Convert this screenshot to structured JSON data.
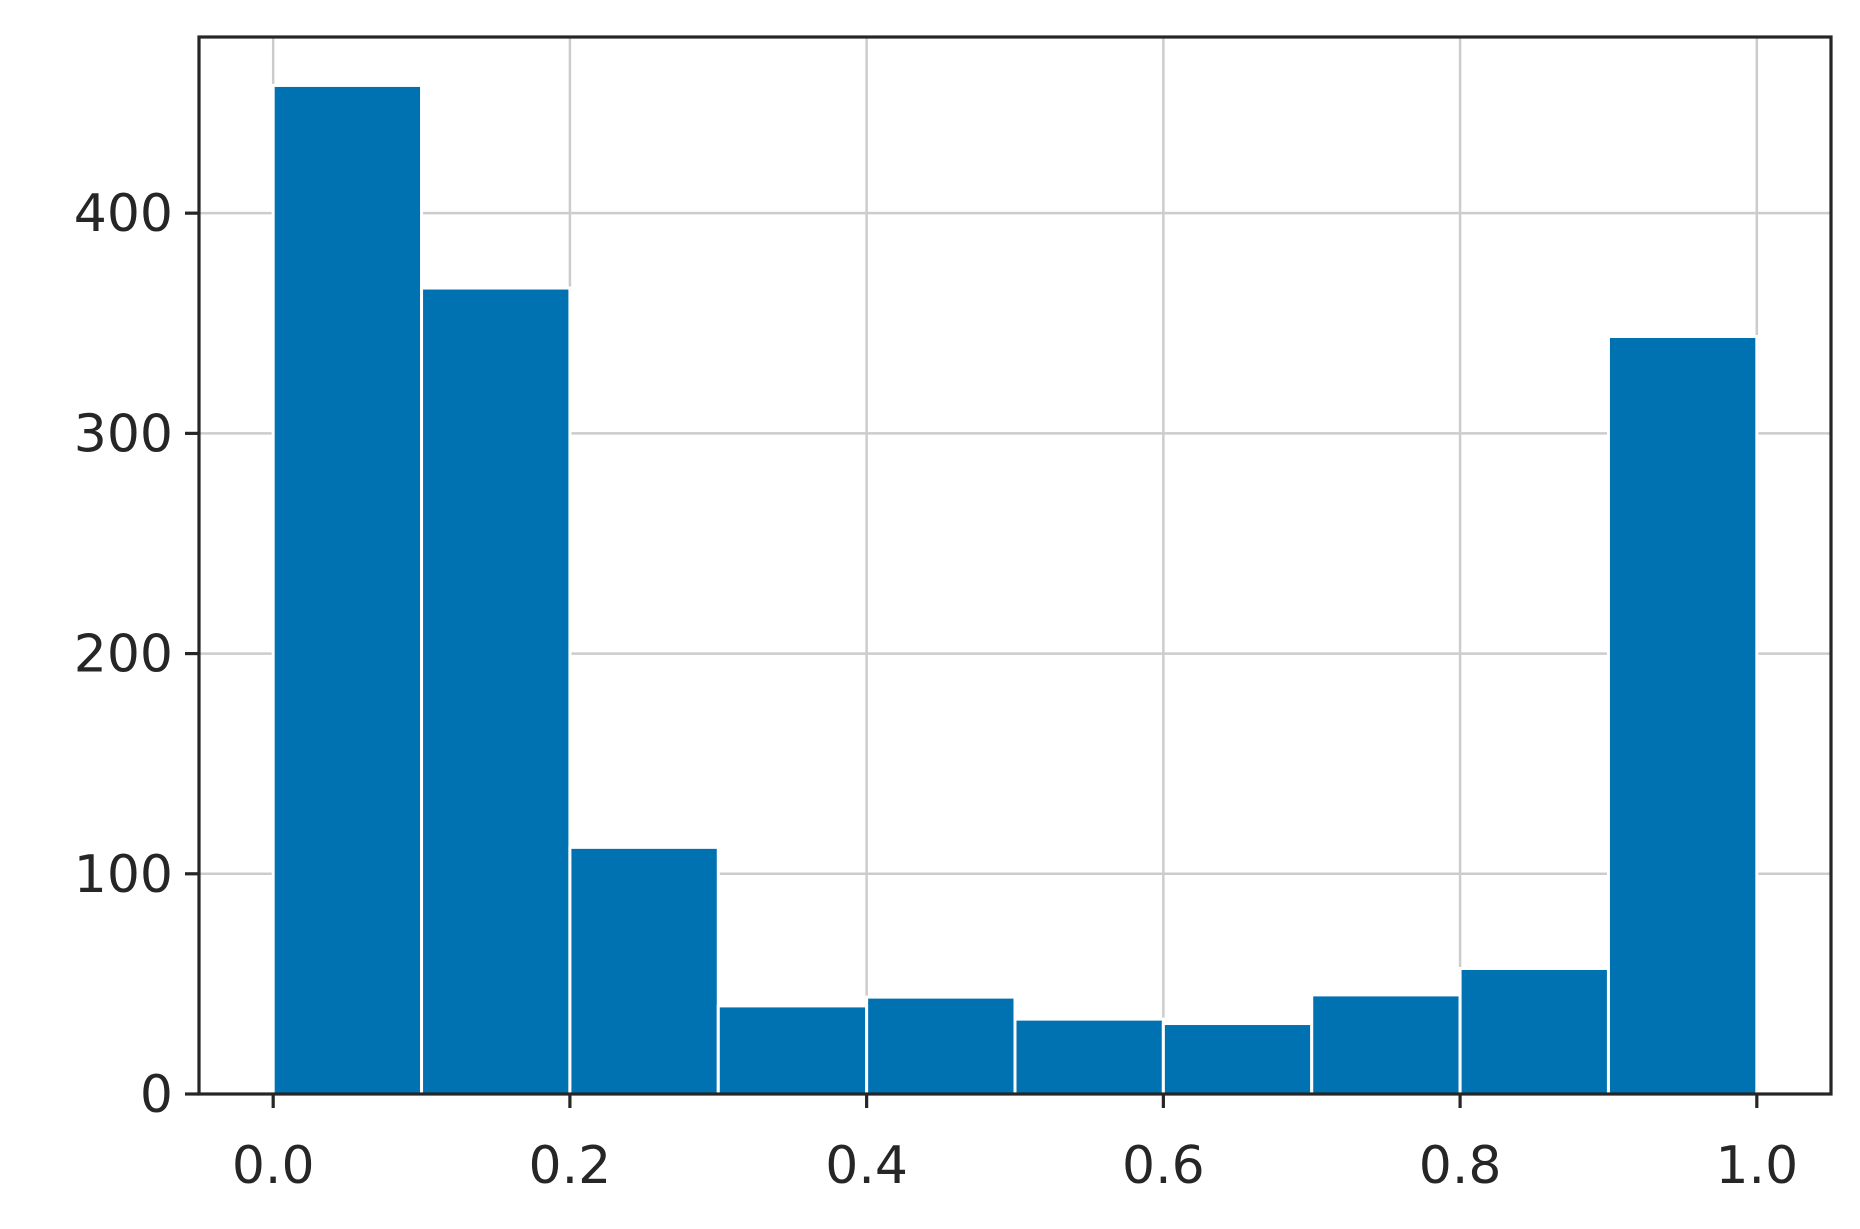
{
  "chart_data": {
    "type": "bar",
    "title": "",
    "xlabel": "",
    "ylabel": "",
    "bin_edges": [
      0.0,
      0.1,
      0.2,
      0.3,
      0.4,
      0.5,
      0.6,
      0.7,
      0.8,
      0.9,
      1.0
    ],
    "values": [
      458,
      366,
      112,
      40,
      44,
      34,
      32,
      45,
      57,
      344
    ],
    "xlim": [
      -0.05,
      1.05
    ],
    "ylim": [
      0,
      480
    ],
    "xticks": [
      0.0,
      0.2,
      0.4,
      0.6,
      0.8,
      1.0
    ],
    "xtick_labels": [
      "0.0",
      "0.2",
      "0.4",
      "0.6",
      "0.8",
      "1.0"
    ],
    "yticks": [
      0,
      100,
      200,
      300,
      400
    ],
    "ytick_labels": [
      "0",
      "100",
      "200",
      "300",
      "400"
    ],
    "grid": true,
    "colors": {
      "bar": "#0072b2",
      "grid": "#cccccc",
      "axis": "#262626"
    }
  }
}
